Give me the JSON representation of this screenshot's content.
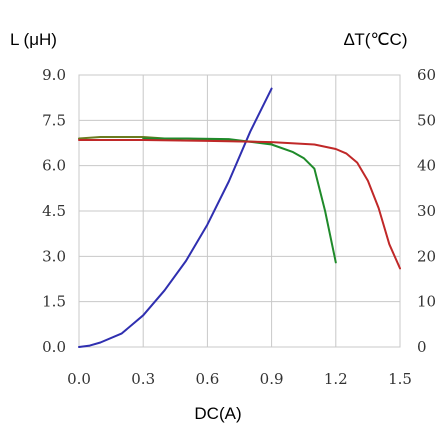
{
  "chart_data": {
    "type": "line",
    "xlabel": "DC(A)",
    "ylabel_left": "L (μH)",
    "ylabel_right": "∆T(℃C)",
    "xlim": [
      0,
      1.5
    ],
    "ylim_left": [
      0,
      9
    ],
    "ylim_right": [
      0,
      60
    ],
    "x_ticks": [
      "0.0",
      "0.3",
      "0.6",
      "0.9",
      "1.2",
      "1.5"
    ],
    "y_ticks_left": [
      "0.0",
      "1.5",
      "3.0",
      "4.5",
      "6.0",
      "7.5",
      "9.0"
    ],
    "y_ticks_right": [
      "0",
      "10",
      "20",
      "30",
      "40",
      "50",
      "60"
    ],
    "grid": true,
    "series": [
      {
        "color": "#2f2fb0",
        "axis": "right",
        "x": [
          0,
          0.05,
          0.1,
          0.2,
          0.3,
          0.4,
          0.5,
          0.6,
          0.7,
          0.8,
          0.9
        ],
        "y": [
          0,
          0.3,
          1,
          3,
          7,
          12.5,
          19,
          27,
          36.5,
          47.5,
          57
        ]
      },
      {
        "color": "#6b7b20",
        "axis": "left",
        "x": [
          0,
          0.1,
          0.2,
          0.3,
          0.4,
          0.5,
          0.6,
          0.7,
          0.8,
          0.9
        ],
        "y": [
          6.9,
          6.95,
          6.95,
          6.95,
          6.9,
          6.9,
          6.85,
          6.82,
          6.8,
          6.75
        ]
      },
      {
        "color": "#1f8a2a",
        "axis": "left",
        "x": [
          0.3,
          0.5,
          0.7,
          0.9,
          1.0,
          1.05,
          1.1,
          1.15,
          1.2
        ],
        "y": [
          6.9,
          6.9,
          6.88,
          6.7,
          6.45,
          6.25,
          5.9,
          4.5,
          2.8
        ]
      },
      {
        "color": "#c02828",
        "axis": "left",
        "x": [
          0,
          0.3,
          0.6,
          0.9,
          1.1,
          1.2,
          1.25,
          1.3,
          1.35,
          1.4,
          1.45,
          1.5
        ],
        "y": [
          6.85,
          6.85,
          6.82,
          6.78,
          6.7,
          6.55,
          6.4,
          6.1,
          5.5,
          4.6,
          3.4,
          2.6
        ]
      }
    ]
  }
}
